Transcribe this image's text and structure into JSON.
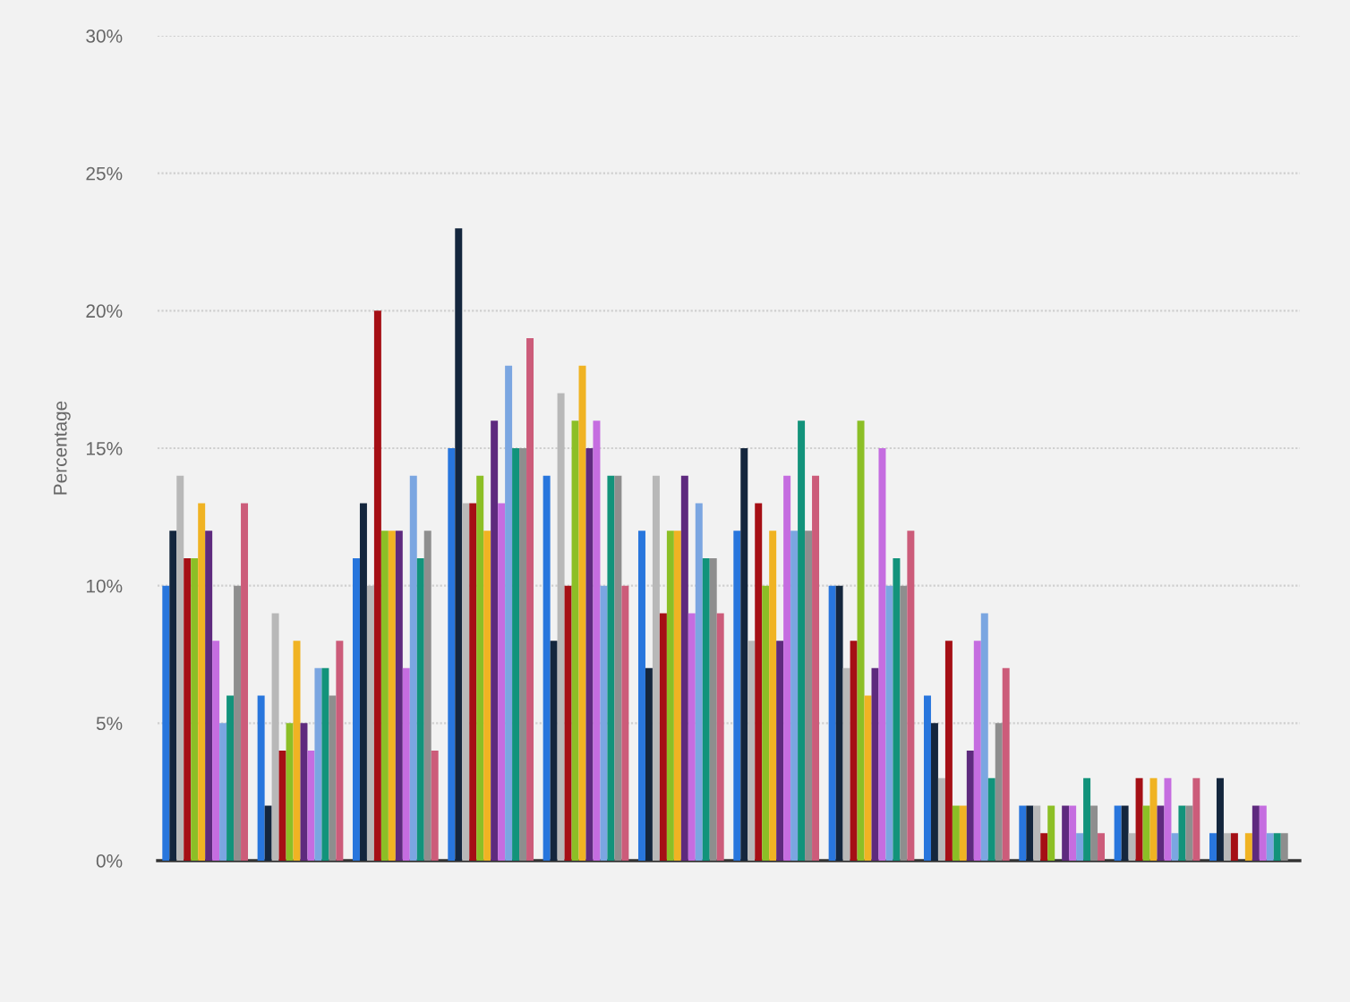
{
  "chart_data": {
    "type": "bar",
    "ylabel": "Percentage",
    "categories": [
      null,
      null,
      null,
      null,
      null,
      null,
      null,
      null,
      null,
      null,
      null,
      null
    ],
    "series": [
      {
        "color": "#2876dd",
        "values": [
          10,
          6,
          11,
          15,
          14,
          12,
          12,
          10,
          6,
          2,
          2,
          1
        ]
      },
      {
        "color": "#14263d",
        "values": [
          12,
          2,
          13,
          23,
          8,
          7,
          15,
          10,
          5,
          2,
          2,
          3
        ]
      },
      {
        "color": "#b8b8b8",
        "values": [
          14,
          9,
          10,
          13,
          17,
          14,
          8,
          7,
          3,
          2,
          1,
          1
        ]
      },
      {
        "color": "#a50f15",
        "values": [
          11,
          4,
          20,
          13,
          10,
          9,
          13,
          8,
          8,
          1,
          3,
          1
        ]
      },
      {
        "color": "#8cbf26",
        "values": [
          11,
          5,
          12,
          14,
          16,
          12,
          10,
          16,
          2,
          2,
          2,
          0
        ]
      },
      {
        "color": "#f0b323",
        "values": [
          13,
          8,
          12,
          12,
          18,
          12,
          12,
          6,
          2,
          0,
          3,
          1
        ]
      },
      {
        "color": "#5e2a7e",
        "values": [
          12,
          5,
          12,
          16,
          15,
          14,
          8,
          7,
          4,
          2,
          2,
          2
        ]
      },
      {
        "color": "#c56de0",
        "values": [
          8,
          4,
          7,
          13,
          16,
          9,
          14,
          15,
          8,
          2,
          3,
          2
        ]
      },
      {
        "color": "#7ba6e1",
        "values": [
          5,
          7,
          14,
          18,
          10,
          13,
          12,
          10,
          9,
          1,
          1,
          1
        ]
      },
      {
        "color": "#12937b",
        "values": [
          6,
          7,
          11,
          15,
          14,
          11,
          16,
          11,
          3,
          3,
          2,
          1
        ]
      },
      {
        "color": "#8e8e8e",
        "values": [
          10,
          6,
          12,
          15,
          14,
          11,
          12,
          10,
          5,
          2,
          2,
          1
        ]
      },
      {
        "color": "#cc5c7a",
        "values": [
          13,
          8,
          4,
          19,
          10,
          9,
          14,
          12,
          7,
          1,
          3,
          0
        ]
      }
    ],
    "ylim": [
      0,
      30
    ],
    "yticks": [
      {
        "value": 0,
        "label": "0%"
      },
      {
        "value": 5,
        "label": "5%"
      },
      {
        "value": 10,
        "label": "10%"
      },
      {
        "value": 15,
        "label": "15%"
      },
      {
        "value": 20,
        "label": "20%"
      },
      {
        "value": 25,
        "label": "25%"
      },
      {
        "value": 30,
        "label": "30%"
      }
    ],
    "grid": "y",
    "legend": false
  }
}
